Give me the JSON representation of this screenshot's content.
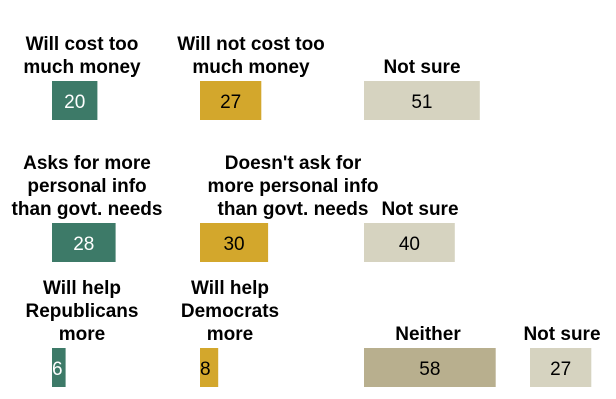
{
  "chart_data": {
    "type": "bar",
    "scale_max": 100,
    "colors": {
      "green": "#3d7a68",
      "gold": "#d3a72c",
      "neutral": "#d6d3c0",
      "neither": "#b8af8e"
    },
    "rows": [
      {
        "items": [
          {
            "label": [
              "Will cost too",
              "much money"
            ],
            "value": 20,
            "display": "20",
            "color": "green",
            "text_color": "#ffffff"
          },
          {
            "label": [
              "Will not cost too",
              "much money"
            ],
            "value": 27,
            "display": "27",
            "color": "gold",
            "text_color": "#000000"
          },
          {
            "label": [
              "Not sure"
            ],
            "value": 51,
            "display": "51",
            "color": "neutral",
            "text_color": "#000000"
          }
        ]
      },
      {
        "items": [
          {
            "label": [
              "Asks for more",
              "personal info",
              "than govt. needs"
            ],
            "value": 28,
            "display": "28",
            "color": "green",
            "text_color": "#ffffff"
          },
          {
            "label": [
              "Doesn't ask for",
              "more personal info",
              "than govt. needs"
            ],
            "value": 30,
            "display": "30",
            "color": "gold",
            "text_color": "#000000"
          },
          {
            "label": [
              "Not sure"
            ],
            "value": 40,
            "display": "40",
            "color": "neutral",
            "text_color": "#000000"
          }
        ]
      },
      {
        "items": [
          {
            "label": [
              "Will help",
              "Republicans",
              "more"
            ],
            "value": 6,
            "display": "6",
            "color": "green",
            "text_color": "#ffffff"
          },
          {
            "label": [
              "Will help",
              "Democrats",
              "more"
            ],
            "value": 8,
            "display": "8",
            "color": "gold",
            "text_color": "#000000"
          },
          {
            "label": [
              "Neither"
            ],
            "value": 58,
            "display": "58",
            "color": "neither",
            "text_color": "#000000"
          },
          {
            "label": [
              "Not sure"
            ],
            "value": 27,
            "display": "27",
            "color": "neutral",
            "text_color": "#000000"
          }
        ]
      }
    ]
  }
}
